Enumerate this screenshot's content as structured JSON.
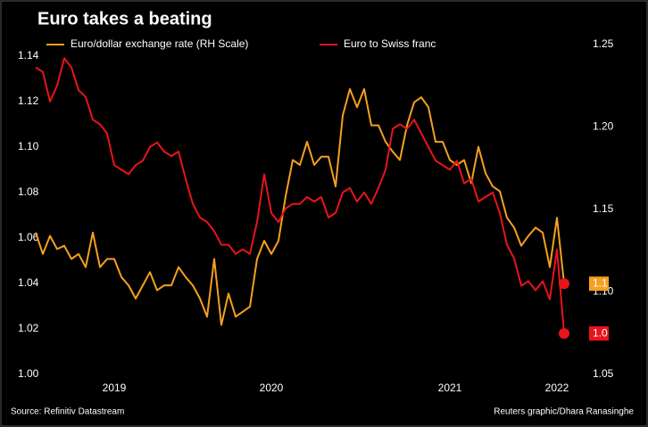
{
  "chart_data": {
    "type": "line",
    "title": "Euro takes a beating",
    "categories": [
      null,
      null,
      null,
      null,
      null,
      null,
      null,
      null,
      null,
      null,
      null,
      "2019",
      null,
      null,
      null,
      null,
      null,
      null,
      null,
      null,
      null,
      null,
      null,
      null,
      null,
      null,
      null,
      null,
      null,
      null,
      null,
      null,
      null,
      "2020",
      null,
      null,
      null,
      null,
      null,
      null,
      null,
      null,
      null,
      null,
      null,
      null,
      null,
      null,
      null,
      null,
      null,
      null,
      null,
      null,
      null,
      null,
      null,
      null,
      "2021",
      null,
      null,
      null,
      null,
      null,
      null,
      null,
      null,
      null,
      null,
      null,
      null,
      null,
      null,
      "2022",
      null
    ],
    "series": [
      {
        "name": "Euro/dollar exchange rate (RH Scale)",
        "color": "#f5a01e",
        "axis": "y2",
        "end_label": "1.1",
        "values": [
          1.136,
          1.123,
          1.134,
          1.126,
          1.128,
          1.12,
          1.123,
          1.115,
          1.136,
          1.115,
          1.12,
          1.12,
          1.109,
          1.104,
          1.096,
          1.104,
          1.112,
          1.101,
          1.104,
          1.104,
          1.115,
          1.109,
          1.104,
          1.096,
          1.085,
          1.12,
          1.08,
          1.099,
          1.085,
          1.088,
          1.091,
          1.12,
          1.131,
          1.123,
          1.131,
          1.158,
          1.18,
          1.177,
          1.191,
          1.177,
          1.182,
          1.182,
          1.164,
          1.207,
          1.223,
          1.212,
          1.223,
          1.201,
          1.201,
          1.191,
          1.185,
          1.18,
          1.201,
          1.215,
          1.218,
          1.212,
          1.191,
          1.191,
          1.18,
          1.177,
          1.18,
          1.166,
          1.188,
          1.172,
          1.164,
          1.161,
          1.145,
          1.139,
          1.128,
          1.134,
          1.139,
          1.136,
          1.115,
          1.145,
          1.105
        ]
      },
      {
        "name": "Euro to Swiss franc",
        "color": "#e8141b",
        "end_label": "1.0",
        "values": [
          1.135,
          1.133,
          1.12,
          1.127,
          1.139,
          1.135,
          1.125,
          1.122,
          1.112,
          1.11,
          1.106,
          1.092,
          1.09,
          1.088,
          1.092,
          1.094,
          1.1,
          1.102,
          1.098,
          1.096,
          1.098,
          1.086,
          1.075,
          1.069,
          1.067,
          1.063,
          1.057,
          1.057,
          1.053,
          1.055,
          1.053,
          1.067,
          1.088,
          1.071,
          1.067,
          1.073,
          1.075,
          1.075,
          1.078,
          1.076,
          1.078,
          1.069,
          1.071,
          1.08,
          1.082,
          1.076,
          1.08,
          1.075,
          1.082,
          1.09,
          1.108,
          1.11,
          1.108,
          1.112,
          1.106,
          1.1,
          1.094,
          1.092,
          1.09,
          1.094,
          1.084,
          1.086,
          1.076,
          1.078,
          1.08,
          1.071,
          1.057,
          1.051,
          1.039,
          1.041,
          1.037,
          1.041,
          1.033,
          1.055,
          1.018
        ]
      }
    ],
    "ylim": [
      1.0,
      1.147
    ],
    "yticks": [
      {
        "value": 1,
        "label": "1.00"
      },
      1.02,
      1.04,
      1.06,
      1.08,
      {
        "value": 1.1,
        "label": "1.10"
      },
      1.12,
      1.14
    ],
    "y2lim": [
      1.05,
      1.2527
    ],
    "y2ticks": [
      1.05,
      {
        "value": 1.1,
        "label": "1.10"
      },
      1.15,
      {
        "value": 1.2,
        "label": "1.20"
      },
      1.25
    ],
    "source": "Source: Refinitiv Datastream",
    "credit": "Reuters graphic/Dhara Ranasinghe"
  }
}
